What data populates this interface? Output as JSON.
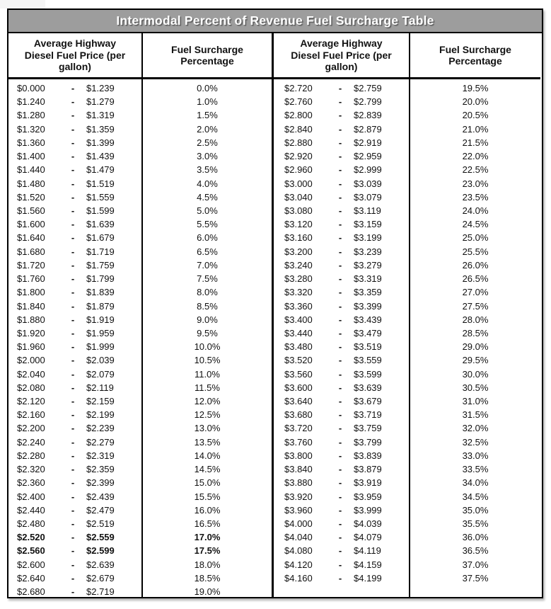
{
  "table": {
    "title": "Intermodal Percent of Revenue Fuel Surcharge Table",
    "title_bg": "#9d9d9d",
    "border_color": "#000000",
    "price_header": "Average Highway Diesel Fuel Price (per gallon)",
    "pct_header": "Fuel Surcharge Percentage",
    "range_separator": "-",
    "left_rows": [
      {
        "low": "$0.000",
        "high": "$1.239",
        "pct": "0.0%"
      },
      {
        "low": "$1.240",
        "high": "$1.279",
        "pct": "1.0%"
      },
      {
        "low": "$1.280",
        "high": "$1.319",
        "pct": "1.5%"
      },
      {
        "low": "$1.320",
        "high": "$1.359",
        "pct": "2.0%"
      },
      {
        "low": "$1.360",
        "high": "$1.399",
        "pct": "2.5%"
      },
      {
        "low": "$1.400",
        "high": "$1.439",
        "pct": "3.0%"
      },
      {
        "low": "$1.440",
        "high": "$1.479",
        "pct": "3.5%"
      },
      {
        "low": "$1.480",
        "high": "$1.519",
        "pct": "4.0%"
      },
      {
        "low": "$1.520",
        "high": "$1.559",
        "pct": "4.5%"
      },
      {
        "low": "$1.560",
        "high": "$1.599",
        "pct": "5.0%"
      },
      {
        "low": "$1.600",
        "high": "$1.639",
        "pct": "5.5%"
      },
      {
        "low": "$1.640",
        "high": "$1.679",
        "pct": "6.0%"
      },
      {
        "low": "$1.680",
        "high": "$1.719",
        "pct": "6.5%"
      },
      {
        "low": "$1.720",
        "high": "$1.759",
        "pct": "7.0%"
      },
      {
        "low": "$1.760",
        "high": "$1.799",
        "pct": "7.5%"
      },
      {
        "low": "$1.800",
        "high": "$1.839",
        "pct": "8.0%"
      },
      {
        "low": "$1.840",
        "high": "$1.879",
        "pct": "8.5%"
      },
      {
        "low": "$1.880",
        "high": "$1.919",
        "pct": "9.0%"
      },
      {
        "low": "$1.920",
        "high": "$1.959",
        "pct": "9.5%"
      },
      {
        "low": "$1.960",
        "high": "$1.999",
        "pct": "10.0%"
      },
      {
        "low": "$2.000",
        "high": "$2.039",
        "pct": "10.5%"
      },
      {
        "low": "$2.040",
        "high": "$2.079",
        "pct": "11.0%"
      },
      {
        "low": "$2.080",
        "high": "$2.119",
        "pct": "11.5%"
      },
      {
        "low": "$2.120",
        "high": "$2.159",
        "pct": "12.0%"
      },
      {
        "low": "$2.160",
        "high": "$2.199",
        "pct": "12.5%"
      },
      {
        "low": "$2.200",
        "high": "$2.239",
        "pct": "13.0%"
      },
      {
        "low": "$2.240",
        "high": "$2.279",
        "pct": "13.5%"
      },
      {
        "low": "$2.280",
        "high": "$2.319",
        "pct": "14.0%"
      },
      {
        "low": "$2.320",
        "high": "$2.359",
        "pct": "14.5%"
      },
      {
        "low": "$2.360",
        "high": "$2.399",
        "pct": "15.0%"
      },
      {
        "low": "$2.400",
        "high": "$2.439",
        "pct": "15.5%"
      },
      {
        "low": "$2.440",
        "high": "$2.479",
        "pct": "16.0%"
      },
      {
        "low": "$2.480",
        "high": "$2.519",
        "pct": "16.5%"
      },
      {
        "low": "$2.520",
        "high": "$2.559",
        "pct": "17.0%",
        "bold": true
      },
      {
        "low": "$2.560",
        "high": "$2.599",
        "pct": "17.5%",
        "bold": true
      },
      {
        "low": "$2.600",
        "high": "$2.639",
        "pct": "18.0%"
      },
      {
        "low": "$2.640",
        "high": "$2.679",
        "pct": "18.5%"
      },
      {
        "low": "$2.680",
        "high": "$2.719",
        "pct": "19.0%"
      }
    ],
    "right_rows": [
      {
        "low": "$2.720",
        "high": "$2.759",
        "pct": "19.5%"
      },
      {
        "low": "$2.760",
        "high": "$2.799",
        "pct": "20.0%"
      },
      {
        "low": "$2.800",
        "high": "$2.839",
        "pct": "20.5%"
      },
      {
        "low": "$2.840",
        "high": "$2.879",
        "pct": "21.0%"
      },
      {
        "low": "$2.880",
        "high": "$2.919",
        "pct": "21.5%"
      },
      {
        "low": "$2.920",
        "high": "$2.959",
        "pct": "22.0%"
      },
      {
        "low": "$2.960",
        "high": "$2.999",
        "pct": "22.5%"
      },
      {
        "low": "$3.000",
        "high": "$3.039",
        "pct": "23.0%"
      },
      {
        "low": "$3.040",
        "high": "$3.079",
        "pct": "23.5%"
      },
      {
        "low": "$3.080",
        "high": "$3.119",
        "pct": "24.0%"
      },
      {
        "low": "$3.120",
        "high": "$3.159",
        "pct": "24.5%"
      },
      {
        "low": "$3.160",
        "high": "$3.199",
        "pct": "25.0%"
      },
      {
        "low": "$3.200",
        "high": "$3.239",
        "pct": "25.5%"
      },
      {
        "low": "$3.240",
        "high": "$3.279",
        "pct": "26.0%"
      },
      {
        "low": "$3.280",
        "high": "$3.319",
        "pct": "26.5%"
      },
      {
        "low": "$3.320",
        "high": "$3.359",
        "pct": "27.0%"
      },
      {
        "low": "$3.360",
        "high": "$3.399",
        "pct": "27.5%"
      },
      {
        "low": "$3.400",
        "high": "$3.439",
        "pct": "28.0%"
      },
      {
        "low": "$3.440",
        "high": "$3.479",
        "pct": "28.5%"
      },
      {
        "low": "$3.480",
        "high": "$3.519",
        "pct": "29.0%"
      },
      {
        "low": "$3.520",
        "high": "$3.559",
        "pct": "29.5%"
      },
      {
        "low": "$3.560",
        "high": "$3.599",
        "pct": "30.0%"
      },
      {
        "low": "$3.600",
        "high": "$3.639",
        "pct": "30.5%"
      },
      {
        "low": "$3.640",
        "high": "$3.679",
        "pct": "31.0%"
      },
      {
        "low": "$3.680",
        "high": "$3.719",
        "pct": "31.5%"
      },
      {
        "low": "$3.720",
        "high": "$3.759",
        "pct": "32.0%"
      },
      {
        "low": "$3.760",
        "high": "$3.799",
        "pct": "32.5%"
      },
      {
        "low": "$3.800",
        "high": "$3.839",
        "pct": "33.0%"
      },
      {
        "low": "$3.840",
        "high": "$3.879",
        "pct": "33.5%"
      },
      {
        "low": "$3.880",
        "high": "$3.919",
        "pct": "34.0%"
      },
      {
        "low": "$3.920",
        "high": "$3.959",
        "pct": "34.5%"
      },
      {
        "low": "$3.960",
        "high": "$3.999",
        "pct": "35.0%"
      },
      {
        "low": "$4.000",
        "high": "$4.039",
        "pct": "35.5%"
      },
      {
        "low": "$4.040",
        "high": "$4.079",
        "pct": "36.0%"
      },
      {
        "low": "$4.080",
        "high": "$4.119",
        "pct": "36.5%"
      },
      {
        "low": "$4.120",
        "high": "$4.159",
        "pct": "37.0%"
      },
      {
        "low": "$4.160",
        "high": "$4.199",
        "pct": "37.5%"
      }
    ]
  }
}
